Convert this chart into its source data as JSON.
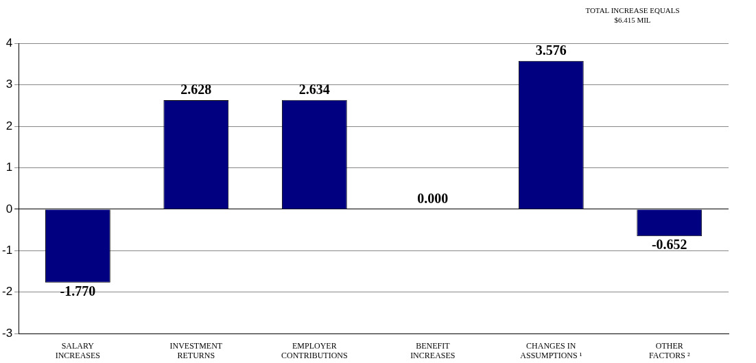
{
  "chart_data": {
    "type": "bar",
    "categories": [
      "SALARY\nINCREASES",
      "INVESTMENT\nRETURNS",
      "EMPLOYER\nCONTRIBUTIONS",
      "BENEFIT\nINCREASES",
      "CHANGES IN\nASSUMPTIONS ¹",
      "OTHER\nFACTORS ²"
    ],
    "values": [
      -1.77,
      2.628,
      2.634,
      0.0,
      3.576,
      -0.652
    ],
    "value_labels": [
      "-1.770",
      "2.628",
      "2.634",
      "0.000",
      "3.576",
      "-0.652"
    ],
    "color": "#000080",
    "ylim": [
      -3,
      4
    ],
    "yticks": [
      -3,
      -2,
      -1,
      0,
      1,
      2,
      3,
      4
    ],
    "grid": "y",
    "legend": false,
    "annotations": [
      "TOTAL INCREASE EQUALS\n$6.415 MIL"
    ]
  }
}
